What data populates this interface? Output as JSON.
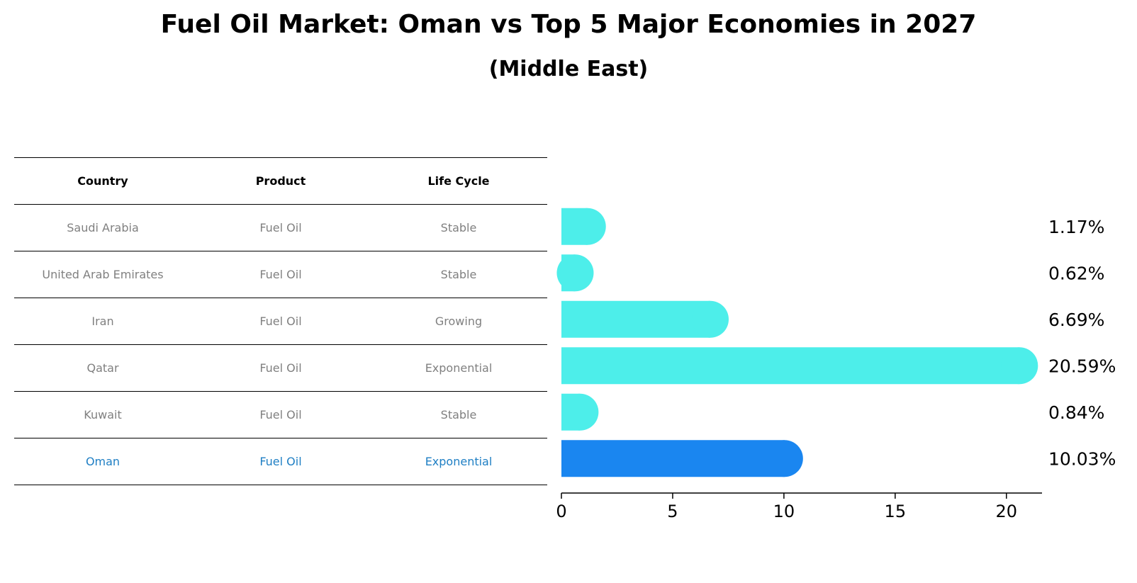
{
  "title": "Fuel Oil Market: Oman vs Top 5 Major Economies in 2027",
  "subtitle": "(Middle East)",
  "table": {
    "headers": [
      "Country",
      "Product",
      "Life Cycle"
    ],
    "rows": [
      {
        "country": "Saudi Arabia",
        "product": "Fuel Oil",
        "life_cycle": "Stable"
      },
      {
        "country": "United Arab Emirates",
        "product": "Fuel Oil",
        "life_cycle": "Stable"
      },
      {
        "country": "Iran",
        "product": "Fuel Oil",
        "life_cycle": "Growing"
      },
      {
        "country": "Qatar",
        "product": "Fuel Oil",
        "life_cycle": "Exponential"
      },
      {
        "country": "Kuwait",
        "product": "Fuel Oil",
        "life_cycle": "Stable"
      },
      {
        "country": "Oman",
        "product": "Fuel Oil",
        "life_cycle": "Exponential"
      }
    ]
  },
  "colors": {
    "bar": "#4deeea",
    "highlight_bar": "#1a86f0",
    "highlight_text": "#1f7fc4",
    "row_text": "#808080"
  },
  "chart_data": {
    "type": "bar",
    "orientation": "horizontal",
    "categories": [
      "Saudi Arabia",
      "United Arab Emirates",
      "Iran",
      "Qatar",
      "Kuwait",
      "Oman"
    ],
    "values": [
      1.17,
      0.62,
      6.69,
      20.59,
      0.84,
      10.03
    ],
    "value_labels": [
      "1.17%",
      "0.62%",
      "6.69%",
      "20.59%",
      "0.84%",
      "10.03%"
    ],
    "highlight": "Oman",
    "xlim": [
      0,
      21.6
    ],
    "xticks": [
      0,
      5,
      10,
      15,
      20
    ],
    "grid": false
  }
}
